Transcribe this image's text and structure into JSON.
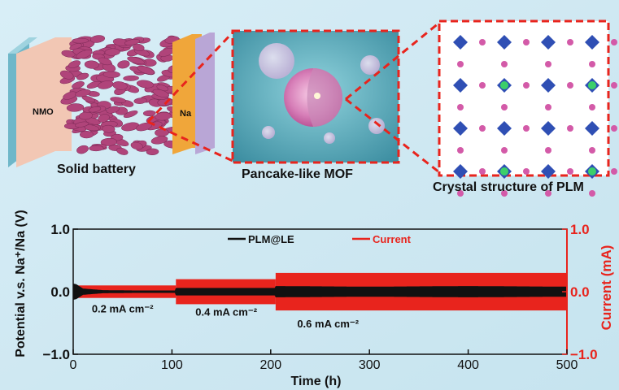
{
  "illustration": {
    "battery": {
      "caption": "Solid battery",
      "left_electrode": "NMO",
      "right_electrode": "Na"
    },
    "mof_caption": "Pancake-like MOF",
    "crystal_caption": "Crystal structure of PLM"
  },
  "colors": {
    "background": "#cfeaf4",
    "voltage_trace": "#111111",
    "current_trace": "#e8241d",
    "zoom_box": "#e8241d",
    "mof_panel": "#5fb0bf",
    "pancake": "#b0447a",
    "nmo": "#f2c7b4",
    "na": "#f0a63a",
    "collector_left": "#6fb7c9",
    "collector_right": "#b9a6d6",
    "polyhedra_blue": "#2f4fb4",
    "linker_pink": "#d35aa8"
  },
  "chart_data": {
    "type": "line",
    "xlabel": "Time (h)",
    "ylabel_left": "Potential v.s. Na⁺/Na (V)",
    "ylabel_right": "Current (mA)",
    "xlim": [
      0,
      500
    ],
    "ylim_left": [
      -1.0,
      1.0
    ],
    "ylim_right": [
      -1.0,
      1.0
    ],
    "x_ticks": [
      0,
      100,
      200,
      300,
      400,
      500
    ],
    "x_tick_labels": [
      "0",
      "100",
      "200",
      "300",
      "400",
      "500"
    ],
    "y_left_ticks": [
      -1.0,
      0.0,
      1.0
    ],
    "y_left_tick_labels": [
      "−1.0",
      "0.0",
      "1.0"
    ],
    "y_right_ticks": [
      -1.0,
      0.0,
      1.0
    ],
    "y_right_tick_labels": [
      "−1.0",
      "0.0",
      "1.0"
    ],
    "legend_position": "top",
    "series": [
      {
        "name": "PLM@LE",
        "axis": "left",
        "envelope": [
          {
            "x": 0,
            "y": 0.13
          },
          {
            "x": 3,
            "y": 0.12
          },
          {
            "x": 10,
            "y": 0.05
          },
          {
            "x": 30,
            "y": 0.025
          },
          {
            "x": 60,
            "y": 0.02
          },
          {
            "x": 103,
            "y": 0.02
          },
          {
            "x": 104,
            "y": 0.06
          },
          {
            "x": 204,
            "y": 0.06
          },
          {
            "x": 205,
            "y": 0.09
          },
          {
            "x": 300,
            "y": 0.08
          },
          {
            "x": 400,
            "y": 0.09
          },
          {
            "x": 500,
            "y": 0.08
          }
        ]
      },
      {
        "name": "Current",
        "axis": "right",
        "steps": [
          {
            "x_start": 0,
            "x_end": 104,
            "value": 0.1
          },
          {
            "x_start": 104,
            "x_end": 205,
            "value": 0.2
          },
          {
            "x_start": 205,
            "x_end": 500,
            "value": 0.3
          }
        ]
      }
    ],
    "annotations": [
      {
        "text": "0.2 mA cm⁻²",
        "x": 50,
        "y": -0.28
      },
      {
        "text": "0.4 mA cm⁻²",
        "x": 155,
        "y": -0.33
      },
      {
        "text": "0.6 mA cm⁻²",
        "x": 258,
        "y": -0.52
      }
    ]
  }
}
